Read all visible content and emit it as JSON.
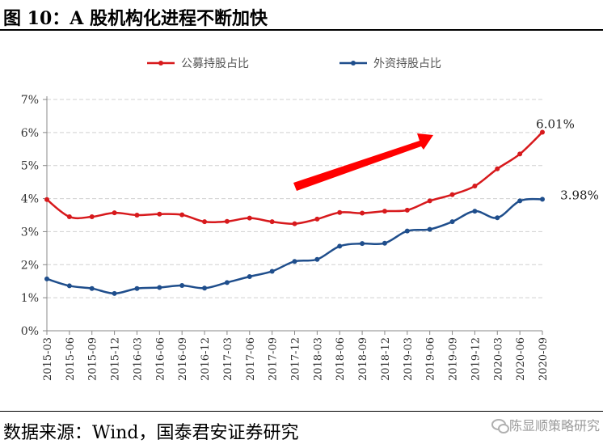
{
  "header": {
    "title": "图 10：A 股机构化进程不断加快"
  },
  "footer": {
    "source": "数据来源：Wind，国泰君安证券研究",
    "watermark": "陈显顺策略研究",
    "watermark_icon": "wechat-icon"
  },
  "chart_data": {
    "type": "line",
    "x": [
      "2015-03",
      "2015-06",
      "2015-09",
      "2015-12",
      "2016-03",
      "2016-06",
      "2016-09",
      "2016-12",
      "2017-03",
      "2017-06",
      "2017-09",
      "2017-12",
      "2018-03",
      "2018-06",
      "2018-09",
      "2018-12",
      "2019-03",
      "2019-06",
      "2019-09",
      "2019-12",
      "2020-03",
      "2020-06",
      "2020-09"
    ],
    "series": [
      {
        "name": "公募持股占比",
        "color": "#d7191c",
        "values": [
          3.97,
          3.45,
          3.45,
          3.57,
          3.5,
          3.53,
          3.51,
          3.3,
          3.31,
          3.41,
          3.3,
          3.24,
          3.38,
          3.58,
          3.56,
          3.62,
          3.65,
          3.93,
          4.12,
          4.38,
          4.9,
          5.35,
          6.01
        ]
      },
      {
        "name": "外资持股占比",
        "color": "#1f4e8c",
        "values": [
          1.57,
          1.36,
          1.28,
          1.13,
          1.28,
          1.31,
          1.37,
          1.29,
          1.46,
          1.64,
          1.8,
          2.1,
          2.16,
          2.56,
          2.64,
          2.65,
          3.02,
          3.07,
          3.3,
          3.62,
          3.42,
          3.93,
          3.98
        ]
      }
    ],
    "ylim": [
      0,
      7
    ],
    "yticks": [
      "0%",
      "1%",
      "2%",
      "3%",
      "4%",
      "5%",
      "6%",
      "7%"
    ],
    "annotations": [
      "6.01%",
      "3.98%"
    ],
    "arrow_color": "#ff0000",
    "grid": true,
    "legend_position": "top",
    "xlabel": "",
    "ylabel": ""
  }
}
